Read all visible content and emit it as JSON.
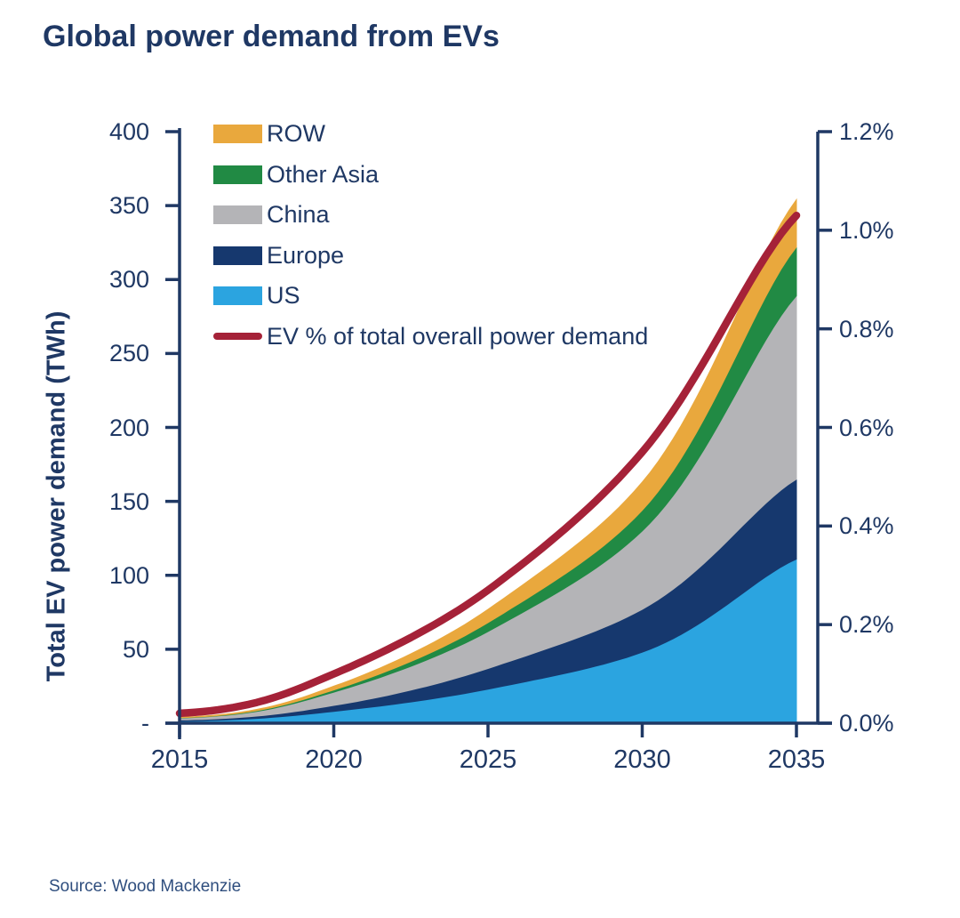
{
  "title": "Global power demand from EVs",
  "source": "Source: Wood Mackenzie",
  "colors": {
    "text": "#1F3864",
    "axis": "#1F3864",
    "background": "#FFFFFF",
    "row": "#E9A83D",
    "other_asia": "#218A44",
    "china": "#B4B4B7",
    "europe": "#16386E",
    "us": "#2BA4E0",
    "ev_line": "#A52238",
    "source_text": "#2F4E7E"
  },
  "legend": {
    "position": "top-left-inside",
    "items": [
      {
        "label": "ROW",
        "color_key": "row",
        "swatch": "box"
      },
      {
        "label": "Other Asia",
        "color_key": "other_asia",
        "swatch": "box"
      },
      {
        "label": "China",
        "color_key": "china",
        "swatch": "box"
      },
      {
        "label": "Europe",
        "color_key": "europe",
        "swatch": "box"
      },
      {
        "label": "US",
        "color_key": "us",
        "swatch": "box"
      },
      {
        "label": "EV % of total overall power demand",
        "color_key": "ev_line",
        "swatch": "line"
      }
    ]
  },
  "chart_data": {
    "type": "area",
    "stacked": true,
    "grid": false,
    "x": [
      2015,
      2020,
      2025,
      2030,
      2035
    ],
    "series": [
      {
        "name": "US",
        "axis": "left",
        "color_key": "us",
        "values": [
          1.5,
          8,
          23,
          48,
          111
        ]
      },
      {
        "name": "Europe",
        "axis": "left",
        "color_key": "europe",
        "values": [
          0.7,
          4,
          14,
          29,
          54
        ]
      },
      {
        "name": "China",
        "axis": "left",
        "color_key": "china",
        "values": [
          1.3,
          9,
          25,
          53,
          124
        ]
      },
      {
        "name": "Other Asia",
        "axis": "left",
        "color_key": "other_asia",
        "values": [
          0.2,
          1.5,
          6,
          14,
          33
        ]
      },
      {
        "name": "ROW",
        "axis": "left",
        "color_key": "row",
        "values": [
          0.3,
          2.5,
          9,
          19,
          32
        ]
      }
    ],
    "line_series": {
      "name": "EV % of total overall power demand",
      "axis": "right",
      "color_key": "ev_line",
      "values": [
        0.02,
        0.1,
        0.27,
        0.55,
        1.03
      ]
    },
    "left_axis": {
      "title": "Total EV power demand (TWh)",
      "min": 0,
      "max": 400,
      "tick_values": [
        400,
        350,
        300,
        250,
        200,
        150,
        100,
        50,
        0
      ],
      "tick_labels": [
        "400",
        "350",
        "300",
        "250",
        "200",
        "150",
        "100",
        "50",
        "-"
      ]
    },
    "right_axis": {
      "min": 0,
      "max": 1.2,
      "tick_values": [
        1.2,
        1.0,
        0.8,
        0.6,
        0.4,
        0.2,
        0
      ],
      "tick_labels": [
        "1.2%",
        "1.0%",
        "0.8%",
        "0.6%",
        "0.4%",
        "0.2%",
        "0.0%"
      ]
    },
    "x_axis": {
      "tick_values": [
        2015,
        2020,
        2025,
        2030,
        2035
      ],
      "tick_labels": [
        "2015",
        "2020",
        "2025",
        "2030",
        "2035"
      ]
    }
  }
}
